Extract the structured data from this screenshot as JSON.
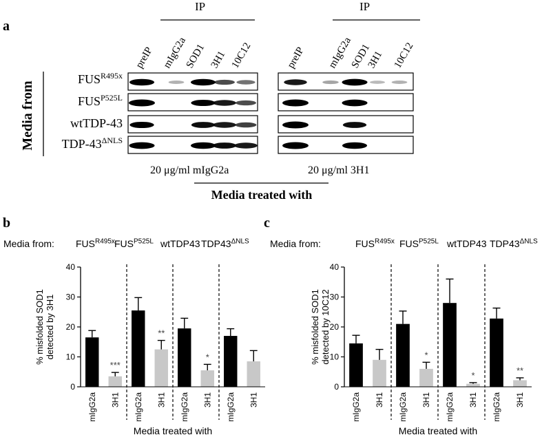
{
  "panels": {
    "a": "a",
    "b": "b",
    "c": "c"
  },
  "blot": {
    "ip_label": "IP",
    "lane_labels": [
      "preIP",
      "mIgG2a",
      "SOD1",
      "3H1",
      "10C12"
    ],
    "side_label": "Media from",
    "rows": [
      {
        "base": "FUS",
        "sup": "R495x"
      },
      {
        "base": "FUS",
        "sup": "P525L"
      },
      {
        "base": "wtTDP-43",
        "sup": ""
      },
      {
        "base": "TDP-43",
        "sup": "ΔNLS"
      }
    ],
    "left_treatment": "20 μg/ml  mIgG2a",
    "right_treatment": "20 μg/ml  3H1",
    "treated_label": "Media treated with",
    "bands_left": [
      [
        0.9,
        0.15,
        0.9,
        0.55,
        0.4
      ],
      [
        1.0,
        0.0,
        0.85,
        0.75,
        0.55
      ],
      [
        0.85,
        0.0,
        0.8,
        0.75,
        0.6
      ],
      [
        0.95,
        0.0,
        0.9,
        0.8,
        0.75
      ]
    ],
    "bands_right": [
      [
        0.75,
        0.2,
        0.95,
        0.12,
        0.15
      ],
      [
        1.0,
        0.0,
        0.95,
        0.0,
        0.0
      ],
      [
        1.0,
        0.0,
        0.8,
        0.0,
        0.0
      ],
      [
        1.0,
        0.0,
        0.9,
        0.0,
        0.0
      ]
    ]
  },
  "chart_data": [
    {
      "type": "bar",
      "panel": "b",
      "media_from_label": "Media from:",
      "groups": [
        {
          "base": "FUS",
          "sup": "R495x"
        },
        {
          "base": "FUS",
          "sup": "P525L"
        },
        {
          "base": "wtTDP43",
          "sup": ""
        },
        {
          "base": "TDP43",
          "sup": "ΔNLS"
        }
      ],
      "categories": [
        "mIgG2a",
        "3H1",
        "mIgG2a",
        "3H1",
        "mIgG2a",
        "3H1",
        "mIgG2a",
        "3H1"
      ],
      "values": [
        16.5,
        3.5,
        25.5,
        12.5,
        19.5,
        5.5,
        17.0,
        8.5
      ],
      "errors": [
        2.3,
        1.3,
        4.3,
        3.0,
        3.4,
        2.0,
        2.4,
        3.6
      ],
      "colors": [
        "#000000",
        "#c8c8c8",
        "#000000",
        "#c8c8c8",
        "#000000",
        "#c8c8c8",
        "#000000",
        "#c8c8c8"
      ],
      "significance": [
        "",
        "***",
        "",
        "**",
        "",
        "*",
        "",
        ""
      ],
      "ylabel_line1": "% misfolded SOD1",
      "ylabel_line2": "detected by 3H1",
      "xlabel": "Media treated with",
      "ylim": [
        0,
        40
      ],
      "yticks": [
        "0",
        "10",
        "20",
        "30",
        "40"
      ]
    },
    {
      "type": "bar",
      "panel": "c",
      "media_from_label": "Media from:",
      "groups": [
        {
          "base": "FUS",
          "sup": "R495x"
        },
        {
          "base": "FUS",
          "sup": "P525L"
        },
        {
          "base": "wtTDP43",
          "sup": ""
        },
        {
          "base": "TDP43",
          "sup": "ΔNLS"
        }
      ],
      "categories": [
        "mIgG2a",
        "3H1",
        "mIgG2a",
        "3H1",
        "mIgG2a",
        "3H1",
        "mIgG2a",
        "3H1"
      ],
      "values": [
        14.5,
        9.0,
        21.0,
        6.0,
        28.0,
        1.0,
        22.8,
        2.2
      ],
      "errors": [
        2.7,
        3.5,
        4.3,
        2.2,
        8.0,
        0.4,
        3.5,
        0.8
      ],
      "colors": [
        "#000000",
        "#c8c8c8",
        "#000000",
        "#c8c8c8",
        "#000000",
        "#c8c8c8",
        "#000000",
        "#c8c8c8"
      ],
      "significance": [
        "",
        "",
        "",
        "*",
        "",
        "*",
        "",
        "**"
      ],
      "ylabel_line1": "% misfolded SOD1",
      "ylabel_line2": "detected by 10C12",
      "xlabel": "Media treated with",
      "ylim": [
        0,
        40
      ],
      "yticks": [
        "0",
        "10",
        "20",
        "30",
        "40"
      ]
    }
  ]
}
